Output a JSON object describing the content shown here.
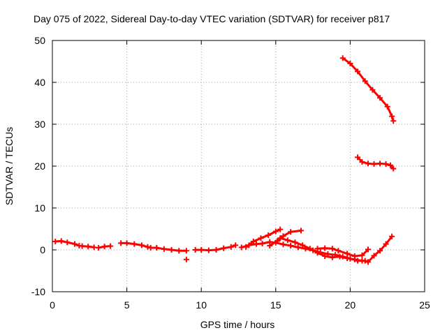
{
  "chart_data": {
    "type": "scatter",
    "title": "Day 075 of 2022, Sidereal Day-to-day VTEC variation (SDTVAR) for receiver p817",
    "xlabel": "GPS time / hours",
    "ylabel": "SDTVAR / TECUs",
    "xlim": [
      0,
      25
    ],
    "ylim": [
      -10,
      50
    ],
    "xticks": [
      0,
      5,
      10,
      15,
      20,
      25
    ],
    "yticks": [
      -10,
      0,
      10,
      20,
      30,
      40,
      50
    ],
    "grid": true,
    "marker_color": "#ff0000",
    "series": [
      {
        "name": "segment-1",
        "points": [
          [
            0.2,
            2.0
          ],
          [
            0.6,
            2.1
          ],
          [
            1.0,
            1.8
          ],
          [
            1.5,
            1.4
          ],
          [
            1.8,
            1.0
          ]
        ]
      },
      {
        "name": "segment-2",
        "points": [
          [
            2.0,
            0.9
          ],
          [
            2.4,
            0.8
          ],
          [
            2.8,
            0.6
          ]
        ]
      },
      {
        "name": "segment-3",
        "points": [
          [
            3.1,
            0.5
          ],
          [
            3.5,
            0.8
          ],
          [
            3.9,
            0.9
          ]
        ]
      },
      {
        "name": "segment-4",
        "points": [
          [
            4.6,
            1.6
          ],
          [
            5.0,
            1.6
          ],
          [
            5.5,
            1.4
          ],
          [
            6.0,
            1.1
          ],
          [
            6.4,
            0.7
          ]
        ]
      },
      {
        "name": "segment-5",
        "points": [
          [
            6.6,
            0.5
          ],
          [
            7.0,
            0.5
          ],
          [
            7.5,
            0.2
          ],
          [
            8.0,
            0.0
          ],
          [
            8.5,
            -0.2
          ],
          [
            9.0,
            -0.2
          ]
        ]
      },
      {
        "name": "segment-6",
        "points": [
          [
            9.6,
            0.0
          ],
          [
            10.0,
            0.0
          ],
          [
            10.5,
            -0.1
          ],
          [
            11.0,
            0.0
          ],
          [
            11.5,
            0.4
          ],
          [
            12.0,
            0.7
          ],
          [
            12.3,
            1.1
          ]
        ]
      },
      {
        "name": "segment-7",
        "points": [
          [
            12.7,
            0.6
          ],
          [
            13.2,
            1.1
          ],
          [
            13.7,
            1.4
          ],
          [
            14.1,
            1.5
          ],
          [
            14.6,
            1.9
          ],
          [
            15.0,
            1.7
          ],
          [
            15.5,
            1.3
          ],
          [
            16.0,
            1.0
          ],
          [
            16.5,
            0.6
          ],
          [
            17.0,
            0.3
          ],
          [
            17.5,
            -0.1
          ],
          [
            18.0,
            -0.6
          ],
          [
            18.5,
            -1.0
          ],
          [
            19.0,
            -1.2
          ],
          [
            19.5,
            -1.6
          ],
          [
            20.0,
            -2.1
          ],
          [
            20.5,
            -2.6
          ],
          [
            21.0,
            -2.6
          ]
        ]
      },
      {
        "name": "segment-8",
        "points": [
          [
            13.0,
            0.7
          ],
          [
            13.5,
            2.0
          ],
          [
            14.0,
            2.8
          ],
          [
            14.5,
            3.5
          ],
          [
            15.0,
            4.4
          ],
          [
            15.3,
            4.9
          ]
        ]
      },
      {
        "name": "segment-9",
        "points": [
          [
            14.6,
            1.0
          ],
          [
            15.1,
            2.1
          ],
          [
            15.5,
            3.3
          ],
          [
            16.0,
            4.3
          ],
          [
            16.7,
            4.6
          ]
        ]
      },
      {
        "name": "segment-10",
        "points": [
          [
            15.3,
            2.8
          ],
          [
            15.8,
            2.3
          ],
          [
            16.3,
            1.8
          ],
          [
            16.8,
            1.1
          ],
          [
            17.3,
            0.3
          ],
          [
            17.8,
            -0.7
          ],
          [
            18.3,
            -1.5
          ],
          [
            18.8,
            -1.8
          ],
          [
            19.3,
            -1.6
          ],
          [
            19.8,
            -2.0
          ],
          [
            20.3,
            -2.3
          ],
          [
            20.8,
            -2.6
          ]
        ]
      },
      {
        "name": "segment-11",
        "points": [
          [
            17.8,
            0.3
          ],
          [
            18.3,
            0.4
          ],
          [
            18.8,
            0.3
          ],
          [
            19.2,
            -0.2
          ],
          [
            19.8,
            -0.9
          ],
          [
            20.3,
            -1.5
          ],
          [
            20.8,
            -1.3
          ],
          [
            21.2,
            0.1
          ]
        ]
      },
      {
        "name": "segment-12",
        "points": [
          [
            21.2,
            -2.9
          ],
          [
            21.6,
            -1.4
          ],
          [
            22.0,
            -0.2
          ],
          [
            22.4,
            1.4
          ],
          [
            22.8,
            3.2
          ]
        ]
      },
      {
        "name": "segment-13",
        "points": [
          [
            19.5,
            45.8
          ],
          [
            20.0,
            44.5
          ],
          [
            20.5,
            42.6
          ],
          [
            21.0,
            40.3
          ],
          [
            21.5,
            38.2
          ],
          [
            22.0,
            36.3
          ],
          [
            22.5,
            34.2
          ],
          [
            22.8,
            31.9
          ],
          [
            22.9,
            30.8
          ]
        ]
      },
      {
        "name": "segment-14",
        "points": [
          [
            20.5,
            22.1
          ],
          [
            20.8,
            21.0
          ],
          [
            21.2,
            20.6
          ],
          [
            21.6,
            20.5
          ],
          [
            22.0,
            20.6
          ],
          [
            22.4,
            20.5
          ],
          [
            22.7,
            20.2
          ],
          [
            22.9,
            19.4
          ]
        ]
      },
      {
        "name": "outlier",
        "points": [
          [
            9.0,
            -2.3
          ]
        ]
      }
    ]
  }
}
